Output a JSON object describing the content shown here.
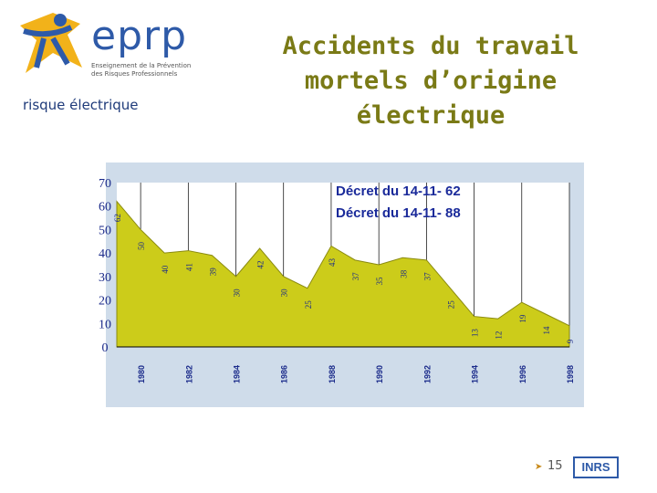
{
  "header": {
    "logo_text": "eprp",
    "logo_subtitle": "Enseignement de la Prévention des Risques Professionnels",
    "section_label": "risque électrique",
    "title_lines": [
      "Accidents du travail",
      "mortels d’origine",
      "électrique"
    ]
  },
  "footer": {
    "page_number": "15",
    "brand": "INRS"
  },
  "colors": {
    "title": "#7a7a16",
    "area_fill": "#cccc1a",
    "plot_bg": "#ffffff",
    "frame_bg": "#cfdcea",
    "annotation": "#1a2a9a"
  },
  "chart_data": {
    "type": "area",
    "x": [
      1979,
      1980,
      1981,
      1982,
      1983,
      1984,
      1985,
      1986,
      1987,
      1988,
      1989,
      1990,
      1991,
      1992,
      1993,
      1994,
      1995,
      1996,
      1997,
      1998
    ],
    "values": [
      62,
      50,
      40,
      41,
      39,
      30,
      42,
      30,
      25,
      43,
      37,
      35,
      38,
      37,
      25,
      13,
      12,
      19,
      14,
      9
    ],
    "value_labels": [
      "62",
      "50",
      "40",
      "41",
      "39",
      "30",
      "42",
      "30",
      "25",
      "43",
      "37",
      "35",
      "38",
      "37",
      "25",
      "13",
      "12",
      "19",
      "14",
      "9"
    ],
    "x_tick_labels": [
      "1980",
      "1982",
      "1984",
      "1986",
      "1988",
      "1990",
      "1992",
      "1994",
      "1996",
      "1998"
    ],
    "x_tick_values": [
      1980,
      1982,
      1984,
      1986,
      1988,
      1990,
      1992,
      1994,
      1996,
      1998
    ],
    "y_ticks": [
      0,
      10,
      20,
      30,
      40,
      50,
      60,
      70
    ],
    "ylim": [
      0,
      70
    ],
    "annotations": [
      "Décret du 14-11- 62",
      "Décret du 14-11- 88"
    ],
    "grid": "vertical",
    "title": "",
    "xlabel": "",
    "ylabel": ""
  }
}
